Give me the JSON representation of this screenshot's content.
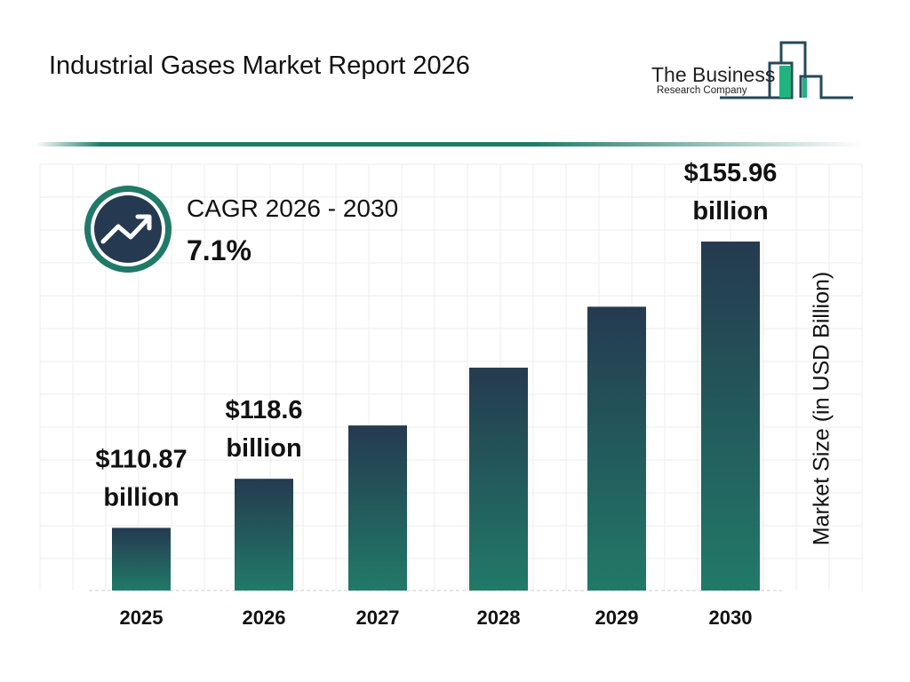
{
  "header": {
    "title": "Industrial Gases Market Report 2026"
  },
  "logo": {
    "line1": "The Business",
    "line2": "Research Company"
  },
  "cagr": {
    "label": "CAGR 2026 - 2030",
    "value": "7.1%",
    "icon": "trending-up-icon"
  },
  "colors": {
    "bar_top": "#253a50",
    "bar_bottom": "#217a68",
    "accent": "#1f7a68",
    "logo_green": "#1fb37f"
  },
  "chart_data": {
    "type": "bar",
    "categories": [
      "2025",
      "2026",
      "2027",
      "2028",
      "2029",
      "2030"
    ],
    "values": [
      110.87,
      118.6,
      127.0,
      136.1,
      145.7,
      155.96
    ],
    "data_labels": [
      {
        "line1": "$110.87",
        "line2": "billion"
      },
      {
        "line1": "$118.6",
        "line2": "billion"
      },
      null,
      null,
      null,
      {
        "line1": "$155.96",
        "line2": "billion"
      }
    ],
    "ylabel": "Market Size (in USD Billion)",
    "grid": true
  }
}
